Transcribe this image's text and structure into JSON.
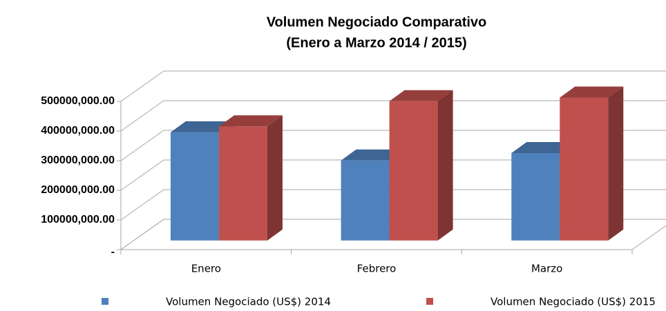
{
  "chart_data": {
    "type": "bar3d",
    "title": "Volumen Negociado Comparativo",
    "subtitle": "(Enero a Marzo 2014 / 2015)",
    "categories": [
      "Enero",
      "Febrero",
      "Marzo"
    ],
    "series": [
      {
        "name": "Volumen Negociado (US$) 2014",
        "color": "#4f81bd",
        "values": [
          365000,
          270000,
          295000
        ]
      },
      {
        "name": "Volumen Negociado (US$) 2015",
        "color": "#c0504d",
        "values": [
          385000,
          470000,
          482000
        ]
      }
    ],
    "ylim": [
      0,
      500000
    ],
    "yticks": [
      {
        "value": 0,
        "label": "-"
      },
      {
        "value": 100000,
        "label": "100000,000.00"
      },
      {
        "value": 200000,
        "label": "200000,000.00"
      },
      {
        "value": 300000,
        "label": "300000,000.00"
      },
      {
        "value": 400000,
        "label": "400000,000.00"
      },
      {
        "value": 500000,
        "label": "500000,000.00"
      }
    ],
    "grid": true
  }
}
